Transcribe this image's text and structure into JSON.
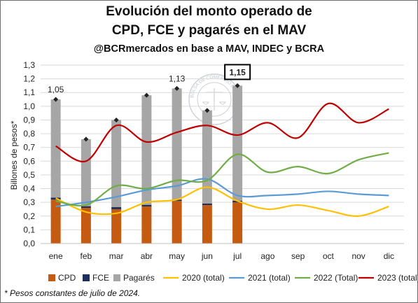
{
  "header": {
    "title_line1": "Evolución del monto operado de",
    "title_line2": "CPD, FCE y pagarés en el MAV",
    "subtitle": "@BCRmercados en base a MAV, INDEC y BCRA"
  },
  "footnote": "* Pesos constantes de julio de 2024.",
  "watermark_text": "BOLSA DE COMERCIO DE ROSARIO",
  "chart_data": {
    "type": "bar",
    "stacked": true,
    "ylabel": "Billones de pesos*",
    "xlabel": "",
    "ylim": [
      0,
      1.3
    ],
    "ytick_step": 0.1,
    "ytick_labels": [
      "0,0",
      "0,1",
      "0,2",
      "0,3",
      "0,4",
      "0,5",
      "0,6",
      "0,7",
      "0,8",
      "0,9",
      "1,0",
      "1,1",
      "1,2",
      "1,3"
    ],
    "grid": true,
    "legend_position": "bottom",
    "categories": [
      "ene",
      "feb",
      "mar",
      "abr",
      "may",
      "jun",
      "jul",
      "ago",
      "sep",
      "oct",
      "nov",
      "dic"
    ],
    "bar_series": [
      {
        "name": "CPD",
        "color": "#c55a11",
        "values": [
          0.32,
          0.26,
          0.25,
          0.27,
          0.31,
          0.28,
          0.3,
          null,
          null,
          null,
          null,
          null
        ]
      },
      {
        "name": "FCE",
        "color": "#1f2f5c",
        "values": [
          0.015,
          0.012,
          0.015,
          0.012,
          0.01,
          0.012,
          0.012,
          null,
          null,
          null,
          null,
          null
        ]
      },
      {
        "name": "Pagarés",
        "color": "#a6a6a6",
        "values": [
          0.715,
          0.488,
          0.635,
          0.798,
          0.81,
          0.678,
          0.838,
          null,
          null,
          null,
          null,
          null
        ]
      }
    ],
    "totals": [
      1.05,
      0.76,
      0.9,
      1.08,
      1.13,
      0.97,
      1.15,
      null,
      null,
      null,
      null,
      null
    ],
    "total_labels": {
      "0": "1,05",
      "4": "1,13",
      "6": "1,15"
    },
    "highlight_label_index": 6,
    "line_series": [
      {
        "name": "2020 (total)",
        "color": "#ffc000",
        "values": [
          0.33,
          0.23,
          0.22,
          0.3,
          0.32,
          0.41,
          0.31,
          0.25,
          0.28,
          0.24,
          0.2,
          0.27
        ]
      },
      {
        "name": "2021 (total)",
        "color": "#5b9bd5",
        "values": [
          0.27,
          0.3,
          0.34,
          0.39,
          0.42,
          0.47,
          0.35,
          0.35,
          0.36,
          0.38,
          0.36,
          0.35
        ]
      },
      {
        "name": "2022 (Total)",
        "color": "#70ad47",
        "values": [
          0.31,
          0.28,
          0.42,
          0.4,
          0.46,
          0.46,
          0.65,
          0.52,
          0.56,
          0.51,
          0.61,
          0.66
        ]
      },
      {
        "name": "2023 (total)",
        "color": "#c00000",
        "values": [
          0.71,
          0.6,
          0.86,
          0.74,
          0.81,
          0.86,
          0.79,
          0.88,
          0.77,
          1.02,
          0.88,
          0.98
        ]
      }
    ]
  }
}
